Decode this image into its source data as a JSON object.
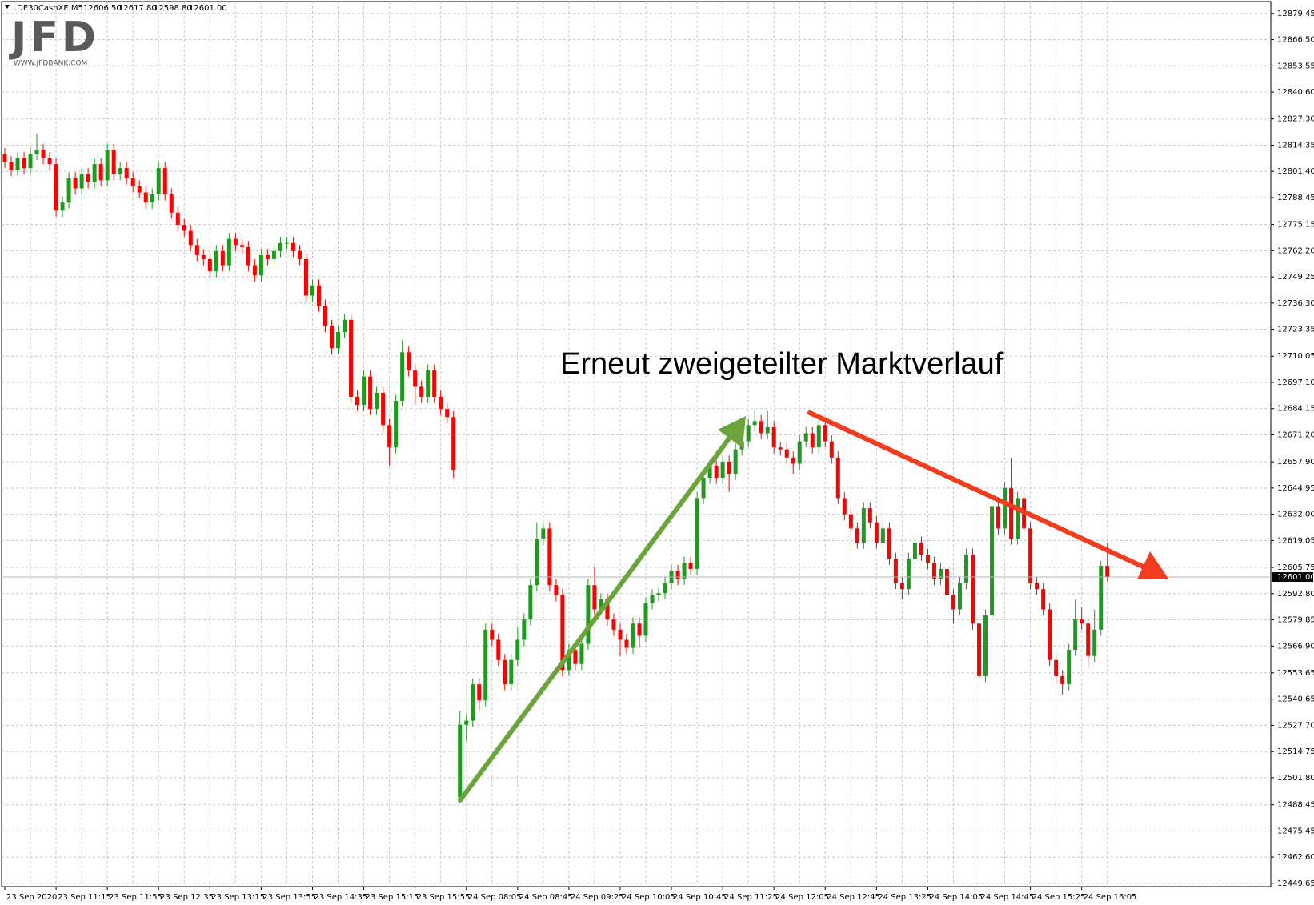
{
  "chart_data": {
    "type": "candlestick",
    "symbol": ".DE30CashXE,M5",
    "header_values": [
      "12606.50",
      "12617.80",
      "12598.80",
      "12601.00"
    ],
    "annotation": "Erneut zweigeteilter Marktverlauf",
    "up_color": "#1f9a1f",
    "down_color": "#ff0000",
    "grid": true,
    "ylim": [
      12448,
      12885.3
    ],
    "yticks": [
      {
        "value": 12879.45,
        "label": "12879.45"
      },
      {
        "value": 12866.5,
        "label": "12866.50"
      },
      {
        "value": 12853.55,
        "label": "12853.55"
      },
      {
        "value": 12840.6,
        "label": "12840.60"
      },
      {
        "value": 12827.3,
        "label": "12827.30"
      },
      {
        "value": 12814.35,
        "label": "12814.35"
      },
      {
        "value": 12801.4,
        "label": "12801.40"
      },
      {
        "value": 12788.45,
        "label": "12788.45"
      },
      {
        "value": 12775.15,
        "label": "12775.15"
      },
      {
        "value": 12762.2,
        "label": "12762.20"
      },
      {
        "value": 12749.25,
        "label": "12749.25"
      },
      {
        "value": 12736.3,
        "label": "12736.30"
      },
      {
        "value": 12723.35,
        "label": "12723.35"
      },
      {
        "value": 12710.05,
        "label": "12710.05"
      },
      {
        "value": 12697.1,
        "label": "12697.10"
      },
      {
        "value": 12684.15,
        "label": "12684.15"
      },
      {
        "value": 12671.2,
        "label": "12671.20"
      },
      {
        "value": 12657.9,
        "label": "12657.90"
      },
      {
        "value": 12644.95,
        "label": "12644.95"
      },
      {
        "value": 12632,
        "label": "12632.00"
      },
      {
        "value": 12619.05,
        "label": "12619.05"
      },
      {
        "value": 12605.75,
        "label": "12605.75"
      },
      {
        "value": 12592.8,
        "label": "12592.80"
      },
      {
        "value": 12579.85,
        "label": "12579.85"
      },
      {
        "value": 12566.9,
        "label": "12566.90"
      },
      {
        "value": 12553.65,
        "label": "12553.65"
      },
      {
        "value": 12540.65,
        "label": "12540.65"
      },
      {
        "value": 12527.7,
        "label": "12527.70"
      },
      {
        "value": 12514.75,
        "label": "12514.75"
      },
      {
        "value": 12501.8,
        "label": "12501.80"
      },
      {
        "value": 12488.45,
        "label": "12488.45"
      },
      {
        "value": 12475.45,
        "label": "12475.45"
      },
      {
        "value": 12462.6,
        "label": "12462.60"
      },
      {
        "value": 12449.65,
        "label": "12449.65"
      }
    ],
    "current_price": {
      "value": 12601,
      "label": "12601.00"
    },
    "categories": [
      "23 Sep 2020",
      null,
      null,
      null,
      null,
      null,
      null,
      null,
      "23 Sep 11:15",
      null,
      null,
      null,
      null,
      null,
      null,
      null,
      "23 Sep 11:55",
      null,
      null,
      null,
      null,
      null,
      null,
      null,
      "23 Sep 12:35",
      null,
      null,
      null,
      null,
      null,
      null,
      null,
      "23 Sep 13:15",
      null,
      null,
      null,
      null,
      null,
      null,
      null,
      "23 Sep 13:55",
      null,
      null,
      null,
      null,
      null,
      null,
      null,
      "23 Sep 14:35",
      null,
      null,
      null,
      null,
      null,
      null,
      null,
      "23 Sep 15:15",
      null,
      null,
      null,
      null,
      null,
      null,
      null,
      "23 Sep 15:55",
      null,
      null,
      null,
      null,
      null,
      null,
      null,
      "24 Sep 08:05",
      null,
      null,
      null,
      null,
      null,
      null,
      null,
      "24 Sep 08:45",
      null,
      null,
      null,
      null,
      null,
      null,
      null,
      "24 Sep 09:25",
      null,
      null,
      null,
      null,
      null,
      null,
      null,
      "24 Sep 10:05",
      null,
      null,
      null,
      null,
      null,
      null,
      null,
      "24 Sep 10:45",
      null,
      null,
      null,
      null,
      null,
      null,
      null,
      "24 Sep 11:25",
      null,
      null,
      null,
      null,
      null,
      null,
      null,
      "24 Sep 12:05",
      null,
      null,
      null,
      null,
      null,
      null,
      null,
      "24 Sep 12:45",
      null,
      null,
      null,
      null,
      null,
      null,
      null,
      "24 Sep 13:25",
      null,
      null,
      null,
      null,
      null,
      null,
      null,
      "24 Sep 14:05",
      null,
      null,
      null,
      null,
      null,
      null,
      null,
      "24 Sep 14:45",
      null,
      null,
      null,
      null,
      null,
      null,
      null,
      "24 Sep 15:25",
      null,
      null,
      null,
      null,
      null,
      null,
      null,
      "24 Sep 16:05",
      null,
      null,
      null,
      null
    ],
    "open": [
      12810,
      12806,
      12802,
      12808,
      12803,
      12810,
      12812,
      12808,
      12805,
      12782,
      12786,
      12798,
      12793,
      12800,
      12796,
      12805,
      12797,
      12812,
      12800,
      12803,
      12798,
      12794,
      12791,
      12786,
      12790,
      12803,
      12790,
      12781,
      12775,
      12772,
      12765,
      12760,
      12758,
      12752,
      12762,
      12755,
      12768,
      12765,
      12764,
      12755,
      12750,
      12760,
      12758,
      12762,
      12766,
      12766,
      12762,
      12758,
      12740,
      12745,
      12735,
      12725,
      12714,
      12722,
      12728,
      12690,
      12686,
      12700,
      12684,
      12692,
      12676,
      12665,
      12688,
      12712,
      12703,
      12695,
      12690,
      12703,
      12690,
      12684,
      12680,
      12492,
      12528,
      12530,
      12548,
      12540,
      12575,
      12570,
      12560,
      12548,
      12560,
      12570,
      12580,
      12597,
      12620,
      12625,
      12597,
      12592,
      12555,
      12565,
      12558,
      12568,
      12597,
      12585,
      12590,
      12580,
      12575,
      12570,
      12566,
      12578,
      12572,
      12588,
      12592,
      12593,
      12598,
      12604,
      12600,
      12608,
      12605,
      12640,
      12650,
      12656,
      12650,
      12658,
      12652,
      12664,
      12668,
      12676,
      12678,
      12672,
      12675,
      12665,
      12664,
      12660,
      12657,
      12668,
      12672,
      12665,
      12676,
      12668,
      12660,
      12640,
      12632,
      12625,
      12618,
      12635,
      12628,
      12618,
      12625,
      12610,
      12598,
      12595,
      12610,
      12618,
      12612,
      12608,
      12600,
      12605,
      12592,
      12585,
      12598,
      12612,
      12578,
      12552,
      12582,
      12636,
      12625,
      12645,
      12620,
      12640,
      12625,
      12598,
      12595,
      12585,
      12560,
      12552,
      12548,
      12565,
      12580,
      12578,
      12562,
      12575,
      12606.5
    ],
    "high": [
      12813,
      12809,
      12811,
      12811,
      12813,
      12820,
      12815,
      12811,
      12808,
      12789,
      12801,
      12801,
      12803,
      12803,
      12808,
      12808,
      12815,
      12815,
      12806,
      12806,
      12801,
      12797,
      12794,
      12793,
      12806,
      12806,
      12793,
      12784,
      12778,
      12775,
      12768,
      12763,
      12761,
      12765,
      12765,
      12771,
      12771,
      12768,
      12767,
      12758,
      12763,
      12763,
      12765,
      12769,
      12769,
      12769,
      12765,
      12761,
      12748,
      12748,
      12738,
      12728,
      12725,
      12731,
      12731,
      12693,
      12703,
      12703,
      12695,
      12695,
      12679,
      12691,
      12718,
      12715,
      12706,
      12698,
      12706,
      12706,
      12693,
      12687,
      12683,
      12535,
      12533,
      12551,
      12551,
      12578,
      12578,
      12573,
      12563,
      12563,
      12576,
      12583,
      12600,
      12628,
      12628,
      12628,
      12600,
      12595,
      12568,
      12568,
      12571,
      12600,
      12606,
      12593,
      12593,
      12583,
      12578,
      12573,
      12581,
      12581,
      12591,
      12595,
      12596,
      12601,
      12607,
      12607,
      12611,
      12611,
      12643,
      12653,
      12659,
      12659,
      12661,
      12661,
      12667,
      12671,
      12679,
      12683,
      12681,
      12683,
      12678,
      12668,
      12667,
      12663,
      12671,
      12675,
      12675,
      12680,
      12679,
      12671,
      12663,
      12643,
      12635,
      12628,
      12638,
      12638,
      12631,
      12628,
      12628,
      12613,
      12601,
      12613,
      12621,
      12621,
      12615,
      12611,
      12608,
      12608,
      12595,
      12601,
      12615,
      12615,
      12581,
      12585,
      12640,
      12639,
      12648,
      12660,
      12643,
      12643,
      12628,
      12601,
      12598,
      12588,
      12563,
      12555,
      12568,
      12590,
      12586,
      12581,
      12585,
      12609,
      12617.8
    ],
    "low": [
      12803,
      12799,
      12799,
      12800,
      12800,
      12807,
      12805,
      12802,
      12779,
      12779,
      12783,
      12790,
      12790,
      12793,
      12793,
      12794,
      12794,
      12797,
      12797,
      12795,
      12791,
      12788,
      12783,
      12783,
      12787,
      12787,
      12778,
      12772,
      12769,
      12762,
      12757,
      12755,
      12749,
      12749,
      12752,
      12752,
      12762,
      12761,
      12752,
      12747,
      12747,
      12755,
      12755,
      12759,
      12763,
      12759,
      12755,
      12737,
      12737,
      12732,
      12722,
      12711,
      12711,
      12719,
      12687,
      12683,
      12683,
      12681,
      12681,
      12673,
      12656,
      12662,
      12685,
      12700,
      12686,
      12687,
      12687,
      12687,
      12681,
      12677,
      12650,
      12490,
      12520,
      12527,
      12535,
      12537,
      12567,
      12557,
      12545,
      12545,
      12557,
      12567,
      12577,
      12594,
      12617,
      12594,
      12589,
      12552,
      12552,
      12555,
      12555,
      12565,
      12582,
      12582,
      12577,
      12572,
      12562,
      12563,
      12563,
      12566,
      12569,
      12585,
      12589,
      12590,
      12595,
      12597,
      12597,
      12602,
      12602,
      12637,
      12647,
      12647,
      12647,
      12643,
      12649,
      12661,
      12665,
      12673,
      12669,
      12669,
      12662,
      12661,
      12657,
      12652,
      12654,
      12665,
      12662,
      12662,
      12665,
      12657,
      12637,
      12629,
      12622,
      12615,
      12615,
      12625,
      12615,
      12615,
      12607,
      12595,
      12590,
      12592,
      12607,
      12609,
      12605,
      12597,
      12597,
      12589,
      12578,
      12582,
      12595,
      12575,
      12547,
      12549,
      12579,
      12622,
      12622,
      12617,
      12617,
      12622,
      12595,
      12592,
      12582,
      12557,
      12549,
      12543,
      12545,
      12562,
      12575,
      12556,
      12559,
      12572,
      12598.8
    ],
    "close": [
      12806,
      12802,
      12808,
      12803,
      12810,
      12812,
      12808,
      12805,
      12782,
      12786,
      12798,
      12793,
      12800,
      12796,
      12805,
      12797,
      12812,
      12800,
      12803,
      12798,
      12794,
      12791,
      12786,
      12790,
      12803,
      12790,
      12781,
      12775,
      12772,
      12765,
      12760,
      12758,
      12752,
      12762,
      12755,
      12768,
      12765,
      12764,
      12755,
      12750,
      12760,
      12758,
      12762,
      12766,
      12766,
      12762,
      12758,
      12740,
      12745,
      12735,
      12725,
      12714,
      12722,
      12728,
      12690,
      12686,
      12700,
      12684,
      12692,
      12676,
      12665,
      12688,
      12712,
      12703,
      12695,
      12690,
      12703,
      12690,
      12684,
      12680,
      12654,
      12528,
      12530,
      12548,
      12540,
      12575,
      12570,
      12560,
      12548,
      12560,
      12570,
      12580,
      12597,
      12620,
      12625,
      12597,
      12592,
      12555,
      12565,
      12558,
      12568,
      12597,
      12585,
      12590,
      12580,
      12575,
      12570,
      12566,
      12578,
      12572,
      12588,
      12592,
      12593,
      12598,
      12604,
      12600,
      12608,
      12605,
      12640,
      12650,
      12656,
      12650,
      12658,
      12652,
      12664,
      12668,
      12676,
      12678,
      12672,
      12675,
      12665,
      12664,
      12660,
      12657,
      12668,
      12672,
      12665,
      12676,
      12668,
      12660,
      12640,
      12632,
      12625,
      12618,
      12635,
      12628,
      12618,
      12625,
      12610,
      12598,
      12595,
      12610,
      12618,
      12612,
      12608,
      12600,
      12605,
      12592,
      12585,
      12598,
      12612,
      12578,
      12552,
      12582,
      12636,
      12625,
      12645,
      12620,
      12640,
      12625,
      12598,
      12595,
      12585,
      12560,
      12552,
      12548,
      12565,
      12580,
      12578,
      12562,
      12575,
      12606.5,
      12601
    ]
  },
  "logo": {
    "brand": "JFD",
    "site": "WWW.JFDBANK.COM"
  }
}
